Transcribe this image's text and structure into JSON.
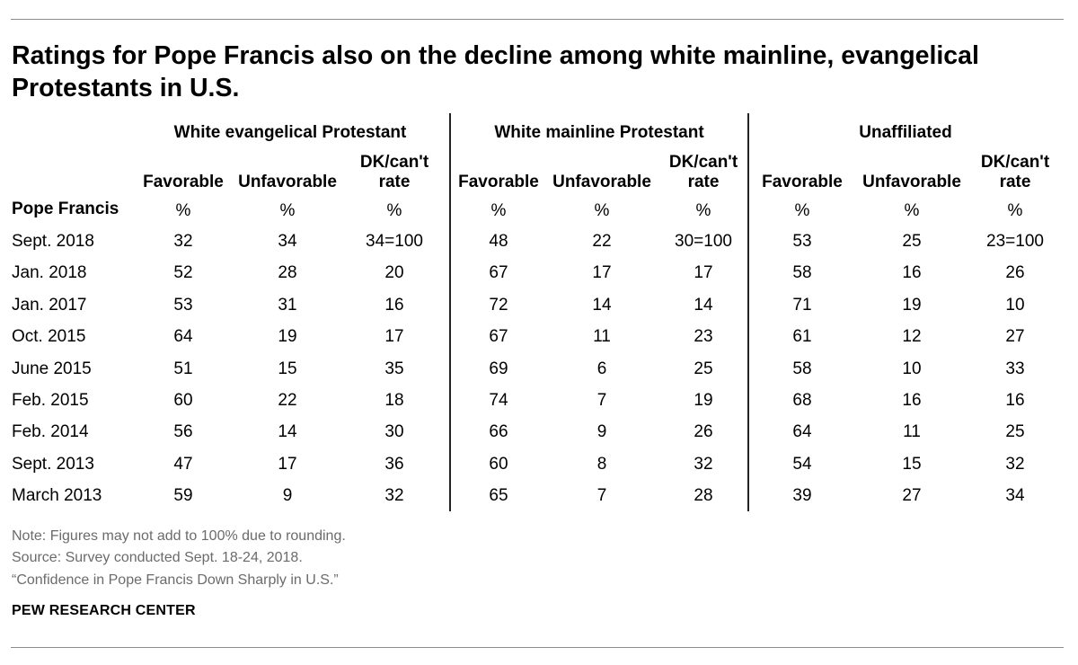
{
  "title": "Ratings for Pope Francis also on the decline among white mainline, evangelical Protestants in U.S.",
  "stub_header": "Pope Francis",
  "chart_data": {
    "type": "table",
    "groups": [
      {
        "name": "White evangelical Protestant",
        "columns": [
          "Favorable",
          "Unfavorable",
          "DK/can't rate"
        ],
        "units": [
          "%",
          "%",
          "%"
        ]
      },
      {
        "name": "White mainline Protestant",
        "columns": [
          "Favorable",
          "Unfavorable",
          "DK/can't rate"
        ],
        "units": [
          "%",
          "%",
          "%"
        ]
      },
      {
        "name": "Unaffiliated",
        "columns": [
          "Favorable",
          "Unfavorable",
          "DK/can't rate"
        ],
        "units": [
          "%",
          "%",
          "%"
        ]
      }
    ],
    "rows": [
      {
        "label": "Sept. 2018",
        "values": [
          "32",
          "34",
          "34=100",
          "48",
          "22",
          "30=100",
          "53",
          "25",
          "23=100"
        ]
      },
      {
        "label": "Jan. 2018",
        "values": [
          "52",
          "28",
          "20",
          "67",
          "17",
          "17",
          "58",
          "16",
          "26"
        ]
      },
      {
        "label": "Jan. 2017",
        "values": [
          "53",
          "31",
          "16",
          "72",
          "14",
          "14",
          "71",
          "19",
          "10"
        ]
      },
      {
        "label": "Oct. 2015",
        "values": [
          "64",
          "19",
          "17",
          "67",
          "11",
          "23",
          "61",
          "12",
          "27"
        ]
      },
      {
        "label": "June 2015",
        "values": [
          "51",
          "15",
          "35",
          "69",
          "6",
          "25",
          "58",
          "10",
          "33"
        ]
      },
      {
        "label": "Feb. 2015",
        "values": [
          "60",
          "22",
          "18",
          "74",
          "7",
          "19",
          "68",
          "16",
          "16"
        ]
      },
      {
        "label": "Feb. 2014",
        "values": [
          "56",
          "14",
          "30",
          "66",
          "9",
          "26",
          "64",
          "11",
          "25"
        ]
      },
      {
        "label": "Sept. 2013",
        "values": [
          "47",
          "17",
          "36",
          "60",
          "8",
          "32",
          "54",
          "15",
          "32"
        ]
      },
      {
        "label": "March 2013",
        "values": [
          "59",
          "9",
          "32",
          "65",
          "7",
          "28",
          "39",
          "27",
          "34"
        ]
      }
    ]
  },
  "footer": {
    "note": "Note: Figures may not add to 100% due to rounding.",
    "source": "Source: Survey conducted Sept. 18-24, 2018.",
    "report": "“Confidence in Pope Francis Down Sharply in U.S.”",
    "brand": "PEW RESEARCH CENTER"
  }
}
